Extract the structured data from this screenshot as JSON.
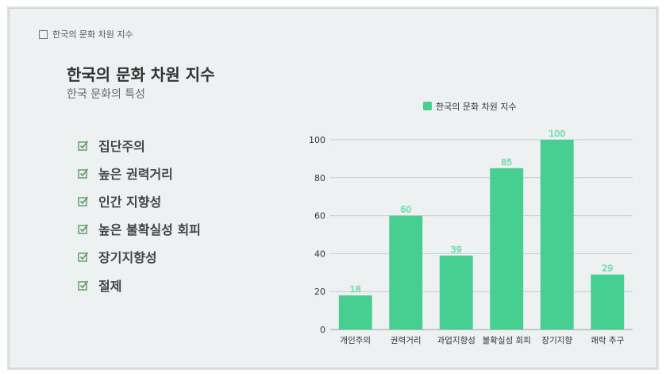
{
  "header": {
    "label": "한국의 문화 차원 지수"
  },
  "slide": {
    "title": "한국의 문화 차원 지수",
    "subtitle": "한국 문화의 특성",
    "bullets": [
      "집단주의",
      "높은 권력거리",
      "인간 지향성",
      "높은 불확실성 회피",
      "장기지향성",
      "절제"
    ]
  },
  "colors": {
    "bar": "#46cf91",
    "check": "#5a9a5e"
  },
  "chart_data": {
    "type": "bar",
    "categories": [
      "개인주의",
      "권력거리",
      "과업지향성",
      "불확실성 회피",
      "장기지향",
      "쾌락 추구"
    ],
    "series": [
      {
        "name": "한국의 문화 차원 지수",
        "values": [
          18,
          60,
          39,
          85,
          100,
          29
        ]
      }
    ],
    "ylim": [
      0,
      100
    ],
    "yticks": [
      0,
      20,
      40,
      60,
      80,
      100
    ],
    "grid": true,
    "legend": "top-center",
    "data_labels": true
  }
}
